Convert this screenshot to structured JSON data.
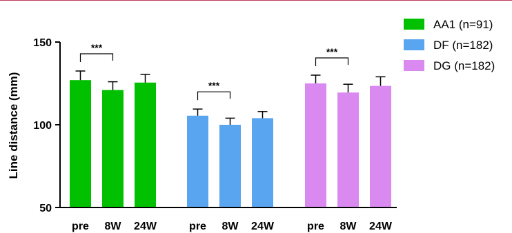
{
  "chart_data": {
    "type": "bar",
    "title": "",
    "xlabel": "",
    "ylabel": "Line distance (mm)",
    "ylim": [
      50,
      150
    ],
    "yticks": [
      50,
      100,
      150
    ],
    "grid": false,
    "legend_position": "right",
    "groups": [
      {
        "name": "AA1 (n=91)",
        "color": "#00c000",
        "categories": [
          "pre",
          "8W",
          "24W"
        ],
        "values": [
          127,
          121,
          125.5
        ],
        "errors": [
          5.5,
          5,
          5
        ],
        "significance": [
          {
            "from": "pre",
            "to": "8W",
            "label": "***"
          }
        ]
      },
      {
        "name": "DF (n=182)",
        "color": "#5aa5f0",
        "categories": [
          "pre",
          "8W",
          "24W"
        ],
        "values": [
          105.5,
          100,
          104
        ],
        "errors": [
          4,
          4,
          4
        ],
        "significance": [
          {
            "from": "pre",
            "to": "8W",
            "label": "***"
          }
        ]
      },
      {
        "name": "DG (n=182)",
        "color": "#d989f0",
        "categories": [
          "pre",
          "8W",
          "24W"
        ],
        "values": [
          125,
          119.5,
          123.5
        ],
        "errors": [
          5,
          5,
          5.5
        ],
        "significance": [
          {
            "from": "pre",
            "to": "8W",
            "label": "***"
          }
        ]
      }
    ]
  }
}
